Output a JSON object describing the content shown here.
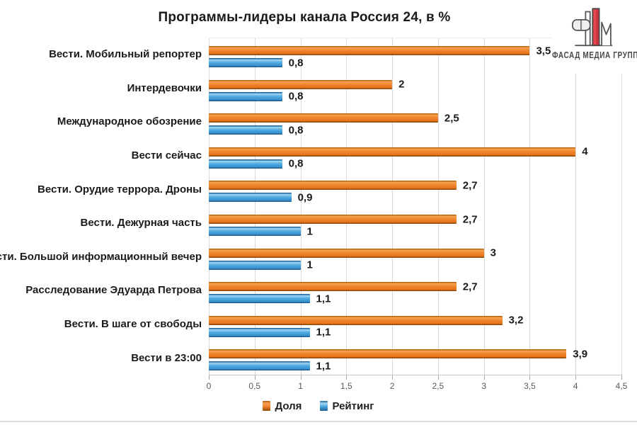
{
  "title": "Программы-лидеры канала Россия 24, в %",
  "logo": {
    "text": "ФАСАД МЕДИА ГРУПП"
  },
  "legend": [
    {
      "label": "Доля",
      "color": "#ED7D24"
    },
    {
      "label": "Рейтинг",
      "color": "#42A0DC"
    }
  ],
  "chart_data": {
    "type": "bar",
    "orientation": "horizontal",
    "title": "Программы-лидеры канала Россия 24, в %",
    "categories": [
      "Вести. Мобильный репортер",
      "Интердевочки",
      "Международное обозрение",
      "Вести сейчас",
      "Вести. Орудие террора. Дроны",
      "Вести. Дежурная часть",
      "Вести. Большой информационный вечер",
      "Расследование Эдуарда Петрова",
      "Вести. В шаге от свободы",
      "Вести в 23:00"
    ],
    "series": [
      {
        "name": "Доля",
        "color": "#ED7D24",
        "values": [
          3.5,
          2,
          2.5,
          4,
          2.7,
          2.7,
          3,
          2.7,
          3.2,
          3.9
        ]
      },
      {
        "name": "Рейтинг",
        "color": "#42A0DC",
        "values": [
          0.8,
          0.8,
          0.8,
          0.8,
          0.9,
          1,
          1,
          1.1,
          1.1,
          1.1
        ]
      }
    ],
    "xlim": [
      0,
      4.5
    ],
    "x_ticks": [
      "0",
      "0,5",
      "1",
      "1,5",
      "2",
      "2,5",
      "3",
      "3,5",
      "4",
      "4,5"
    ],
    "decimal_separator": ",",
    "grid": true,
    "legend_position": "bottom",
    "value_labels": true
  }
}
